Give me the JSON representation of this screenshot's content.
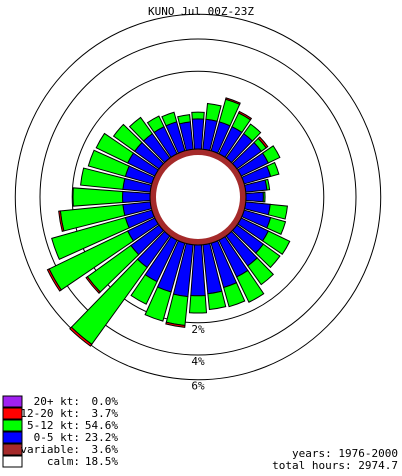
{
  "chart_data": {
    "type": "wind-rose",
    "title": "KUNO Jul 00Z-23Z",
    "r_scale": "sqrt",
    "rticks": [
      {
        "value": 2,
        "label": "2%"
      },
      {
        "value": 4,
        "label": "4%"
      },
      {
        "value": 6,
        "label": "6%"
      }
    ],
    "series": [
      {
        "name": "0-5 kt:",
        "color": "#0000ff",
        "legend_value": "23.2%",
        "values": [
          0.3,
          0.3,
          0.3,
          0.3,
          0.3,
          0.3,
          0.25,
          0.15,
          0.1,
          0.2,
          0.25,
          0.3,
          0.35,
          0.45,
          0.55,
          0.7,
          0.8,
          0.85,
          0.9,
          0.85,
          0.7,
          0.5,
          0.4,
          0.3,
          0.25,
          0.25,
          0.25,
          0.25,
          0.25,
          0.3,
          0.3,
          0.3,
          0.3,
          0.3,
          0.25,
          0.3
        ]
      },
      {
        "name": "5-12 kt:",
        "color": "#00ff00",
        "legend_value": "54.6%",
        "values": [
          0.4,
          0.65,
          0.38,
          0.28,
          0.13,
          0.31,
          0.18,
          0.04,
          0.02,
          0.38,
          0.36,
          0.66,
          0.58,
          0.74,
          1.02,
          0.74,
          0.6,
          0.68,
          1.28,
          1.32,
          0.97,
          5.4,
          2.18,
          4.25,
          3.33,
          2.45,
          1.71,
          1.37,
          1.19,
          1.1,
          0.74,
          0.53,
          0.28,
          0.23,
          0.15,
          0.15
        ]
      },
      {
        "name": "12-20 kt:",
        "color": "#ff0000",
        "legend_value": "3.7%",
        "values": [
          0,
          0.05,
          0.05,
          0,
          0.05,
          0,
          0,
          0,
          0,
          0,
          0,
          0,
          0,
          0,
          0,
          0,
          0,
          0,
          0.1,
          0,
          0,
          0.2,
          0.1,
          0.15,
          0,
          0.1,
          0,
          0,
          0,
          0,
          0,
          0,
          0,
          0,
          0,
          0
        ]
      },
      {
        "name": "20+ kt:",
        "color": "#a020f0",
        "legend_value": "0.0%",
        "values": [
          0,
          0,
          0,
          0,
          0,
          0,
          0,
          0,
          0,
          0,
          0,
          0,
          0,
          0,
          0,
          0,
          0,
          0,
          0,
          0,
          0,
          0,
          0,
          0,
          0,
          0,
          0,
          0,
          0,
          0,
          0,
          0,
          0,
          0,
          0,
          0
        ]
      }
    ],
    "variable": {
      "name": "variable:",
      "color": "#a52a2a",
      "legend_value": "3.6%"
    },
    "calm": {
      "name": "calm:",
      "color": "#ffffff",
      "legend_value": "18.5%"
    },
    "annotations": [
      "years: 1976-2000",
      "total hours: 2974.7"
    ]
  }
}
